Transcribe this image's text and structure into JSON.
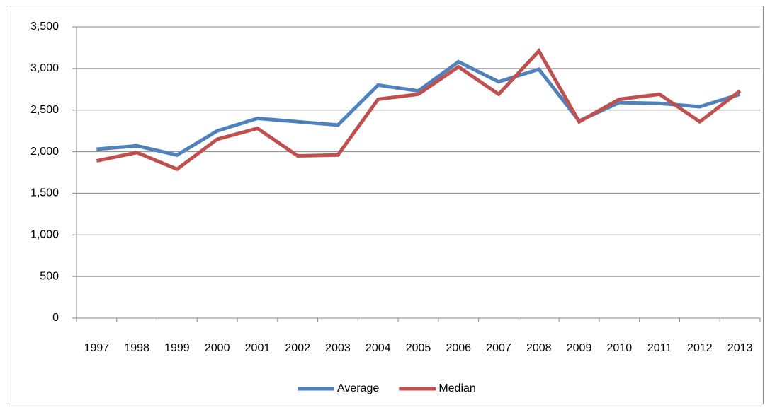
{
  "chart_data": {
    "type": "line",
    "categories": [
      "1997",
      "1998",
      "1999",
      "2000",
      "2001",
      "2002",
      "2003",
      "2004",
      "2005",
      "2006",
      "2007",
      "2008",
      "2009",
      "2010",
      "2011",
      "2012",
      "2013"
    ],
    "series": [
      {
        "name": "Average",
        "color": "#4f81bd",
        "values": [
          2030,
          2070,
          1960,
          2250,
          2400,
          2360,
          2320,
          2800,
          2730,
          3080,
          2840,
          2990,
          2370,
          2590,
          2580,
          2540,
          2690
        ]
      },
      {
        "name": "Median",
        "color": "#c0504d",
        "values": [
          1890,
          1990,
          1790,
          2150,
          2280,
          1950,
          1960,
          2630,
          2690,
          3020,
          2690,
          3210,
          2360,
          2630,
          2690,
          2360,
          2730
        ]
      }
    ],
    "ylim": [
      0,
      3500
    ],
    "yticks": [
      0,
      500,
      {
        "value": 1000,
        "label": "1,000"
      },
      {
        "value": 1500,
        "label": "1,500"
      },
      {
        "value": 2000,
        "label": "2,000"
      },
      {
        "value": 2500,
        "label": "2,500"
      },
      {
        "value": 3000,
        "label": "3,000"
      },
      {
        "value": 3500,
        "label": "3,500"
      }
    ],
    "grid": true,
    "legend": "bottom"
  }
}
